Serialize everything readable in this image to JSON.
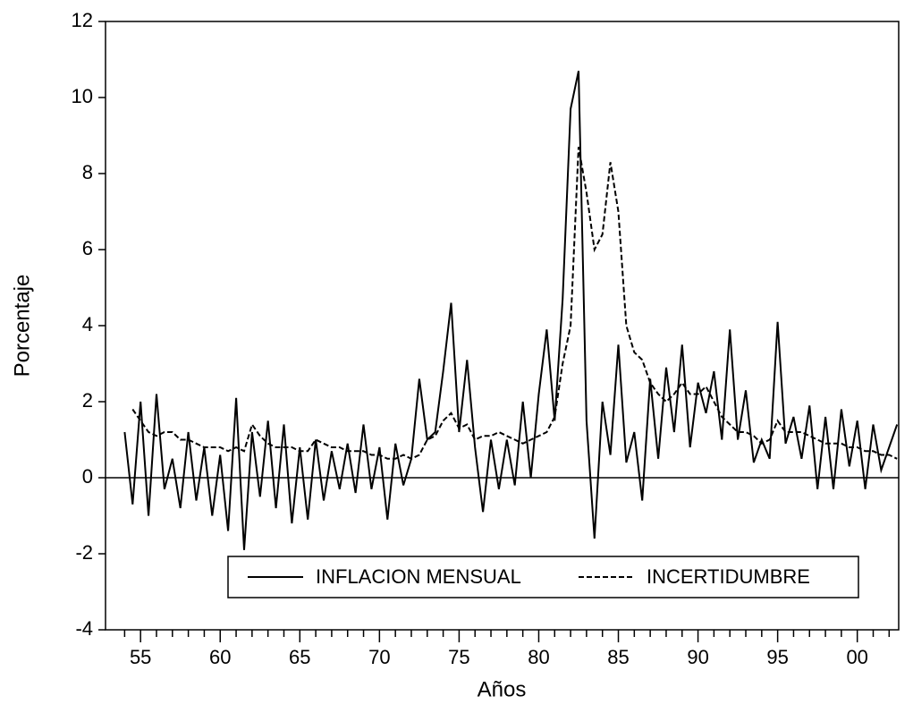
{
  "chart_data": {
    "type": "line",
    "y_label": "Porcentaje",
    "x_label": "Años",
    "x": [
      1954,
      1954.5,
      1955,
      1955.5,
      1956,
      1956.5,
      1957,
      1957.5,
      1958,
      1958.5,
      1959,
      1959.5,
      1960,
      1960.5,
      1961,
      1961.5,
      1962,
      1962.5,
      1963,
      1963.5,
      1964,
      1964.5,
      1965,
      1965.5,
      1966,
      1966.5,
      1967,
      1967.5,
      1968,
      1968.5,
      1969,
      1969.5,
      1970,
      1970.5,
      1971,
      1971.5,
      1972,
      1972.5,
      1973,
      1973.5,
      1974,
      1974.5,
      1975,
      1975.5,
      1976,
      1976.5,
      1977,
      1977.5,
      1978,
      1978.5,
      1979,
      1979.5,
      1980,
      1980.5,
      1981,
      1981.5,
      1982,
      1982.5,
      1983,
      1983.5,
      1984,
      1984.5,
      1985,
      1985.5,
      1986,
      1986.5,
      1987,
      1987.5,
      1988,
      1988.5,
      1989,
      1989.5,
      1990,
      1990.5,
      1991,
      1991.5,
      1992,
      1992.5,
      1993,
      1993.5,
      1994,
      1994.5,
      1995,
      1995.5,
      1996,
      1996.5,
      1997,
      1997.5,
      1998,
      1998.5,
      1999,
      1999.5,
      2000,
      2000.5,
      2001,
      2001.5,
      2002,
      2002.5
    ],
    "series": [
      {
        "name": "INFLACION MENSUAL",
        "color": "#000000",
        "dash": false,
        "values": [
          1.2,
          -0.7,
          2.0,
          -1.0,
          2.2,
          -0.3,
          0.5,
          -0.8,
          1.2,
          -0.6,
          0.8,
          -1.0,
          0.6,
          -1.4,
          2.1,
          -1.9,
          1.2,
          -0.5,
          1.5,
          -0.8,
          1.4,
          -1.2,
          0.8,
          -1.1,
          1.0,
          -0.6,
          0.7,
          -0.3,
          0.9,
          -0.4,
          1.4,
          -0.3,
          0.8,
          -1.1,
          0.9,
          -0.2,
          0.5,
          2.6,
          1.0,
          1.2,
          2.8,
          4.6,
          1.2,
          3.1,
          0.8,
          -0.9,
          1.0,
          -0.3,
          1.0,
          -0.2,
          2.0,
          0.0,
          2.2,
          3.9,
          1.5,
          4.7,
          9.7,
          10.7,
          1.5,
          -1.6,
          2.0,
          0.6,
          3.5,
          0.4,
          1.2,
          -0.6,
          2.6,
          0.5,
          2.9,
          1.2,
          3.5,
          0.8,
          2.5,
          1.7,
          2.8,
          1.0,
          3.9,
          1.0,
          2.3,
          0.4,
          1.0,
          0.5,
          4.1,
          0.9,
          1.6,
          0.5,
          1.9,
          -0.3,
          1.6,
          -0.3,
          1.8,
          0.3,
          1.5,
          -0.3,
          1.4,
          0.2,
          0.8,
          1.4
        ]
      },
      {
        "name": "INCERTIDUMBRE",
        "color": "#000000",
        "dash": true,
        "values": [
          null,
          1.8,
          1.5,
          1.2,
          1.1,
          1.2,
          1.2,
          1.0,
          1.0,
          0.9,
          0.8,
          0.8,
          0.8,
          0.7,
          0.8,
          0.7,
          1.4,
          1.1,
          0.9,
          0.8,
          0.8,
          0.8,
          0.7,
          0.7,
          1.0,
          0.9,
          0.8,
          0.8,
          0.7,
          0.7,
          0.7,
          0.6,
          0.6,
          0.5,
          0.5,
          0.6,
          0.5,
          0.6,
          1.0,
          1.1,
          1.5,
          1.7,
          1.3,
          1.4,
          1.0,
          1.1,
          1.1,
          1.2,
          1.1,
          1.0,
          0.9,
          1.0,
          1.1,
          1.2,
          1.6,
          3.0,
          4.0,
          8.7,
          7.5,
          6.0,
          6.4,
          8.3,
          7.0,
          4.0,
          3.3,
          3.1,
          2.5,
          2.2,
          2.0,
          2.2,
          2.5,
          2.2,
          2.2,
          2.4,
          2.0,
          1.6,
          1.4,
          1.2,
          1.2,
          1.1,
          0.9,
          1.0,
          1.5,
          1.2,
          1.2,
          1.2,
          1.1,
          1.0,
          0.9,
          0.9,
          0.9,
          0.8,
          0.8,
          0.7,
          0.7,
          0.6,
          0.6,
          0.5
        ]
      }
    ],
    "xlim": [
      1952.8,
      2002.6
    ],
    "xticks": [
      {
        "value": 1955,
        "label": "55"
      },
      {
        "value": 1960,
        "label": "60"
      },
      {
        "value": 1965,
        "label": "65"
      },
      {
        "value": 1970,
        "label": "70"
      },
      {
        "value": 1975,
        "label": "75"
      },
      {
        "value": 1980,
        "label": "80"
      },
      {
        "value": 1985,
        "label": "85"
      },
      {
        "value": 1990,
        "label": "90"
      },
      {
        "value": 1995,
        "label": "95"
      },
      {
        "value": 2000,
        "label": "00"
      }
    ],
    "xminorticks": [
      1954,
      1956,
      1957,
      1958,
      1959,
      1961,
      1962,
      1963,
      1964,
      1966,
      1967,
      1968,
      1969,
      1971,
      1972,
      1973,
      1974,
      1976,
      1977,
      1978,
      1979,
      1981,
      1982,
      1983,
      1984,
      1986,
      1987,
      1988,
      1989,
      1991,
      1992,
      1993,
      1994,
      1996,
      1997,
      1998,
      1999,
      2001,
      2002
    ],
    "ylim": [
      -4,
      12
    ],
    "yticks": [
      -4,
      -2,
      0,
      2,
      4,
      6,
      8,
      10,
      12
    ],
    "zero_line": true,
    "legend": "lower center"
  }
}
